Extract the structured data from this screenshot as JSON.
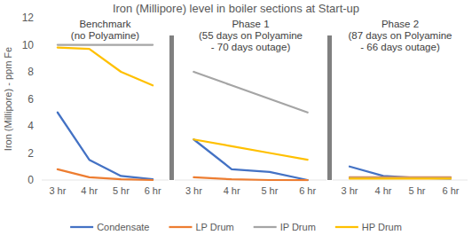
{
  "title": "Iron (Millipore) level in boiler sections at Start-up",
  "chart_data": [
    {
      "type": "line",
      "title": "Benchmark\n(no Polyamine)",
      "y_label": "Iron (Millipore) - ppm Fe",
      "categories": [
        "3 hr",
        "4 hr",
        "5 hr",
        "6 hr"
      ],
      "series": [
        {
          "name": "Condensate",
          "color": "#4472c4",
          "values": [
            5,
            1.5,
            0.3,
            0.05
          ]
        },
        {
          "name": "LP Drum",
          "color": "#ed7d31",
          "values": [
            0.8,
            0.2,
            0.05,
            0
          ]
        },
        {
          "name": "IP Drum",
          "color": "#a5a5a5",
          "values": [
            10,
            10,
            10,
            10
          ]
        },
        {
          "name": "HP Drum",
          "color": "#ffc000",
          "values": [
            9.8,
            9.7,
            8,
            7
          ]
        }
      ],
      "ylim": [
        0,
        12
      ],
      "yticks": [
        0,
        2,
        4,
        6,
        8,
        10,
        12
      ],
      "grid": false,
      "legend": "bottom"
    },
    {
      "type": "line",
      "title": "Phase 1\n(55 days on Polyamine\n- 70 days outage)",
      "categories": [
        "3 hr",
        "4 hr",
        "5 hr",
        "6 hr"
      ],
      "series": [
        {
          "color": "#4472c4",
          "values": [
            3,
            0.8,
            0.6,
            0
          ]
        },
        {
          "color": "#ed7d31",
          "values": [
            0.2,
            0.05,
            0,
            0
          ]
        },
        {
          "color": "#a5a5a5",
          "values": [
            8,
            7,
            6,
            5
          ]
        },
        {
          "color": "#ffc000",
          "values": [
            3,
            2.5,
            2,
            1.5
          ]
        }
      ],
      "ylim": [
        0,
        12
      ]
    },
    {
      "type": "line",
      "title": "Phase 2\n(87 days on Polyamine\n- 66 days outage)",
      "categories": [
        "3 hr",
        "4 hr",
        "5 hr",
        "6 hr"
      ],
      "series": [
        {
          "color": "#4472c4",
          "values": [
            1,
            0.3,
            0.15,
            0.1
          ]
        },
        {
          "color": "#ed7d31",
          "values": [
            0.2,
            0.2,
            0.2,
            0.2
          ]
        },
        {
          "color": "#a5a5a5",
          "values": [
            0.15,
            0.15,
            0.15,
            0.15
          ]
        },
        {
          "color": "#ffc000",
          "values": [
            0.1,
            0.1,
            0.1,
            0.1
          ]
        }
      ],
      "ylim": [
        0,
        12
      ]
    }
  ]
}
